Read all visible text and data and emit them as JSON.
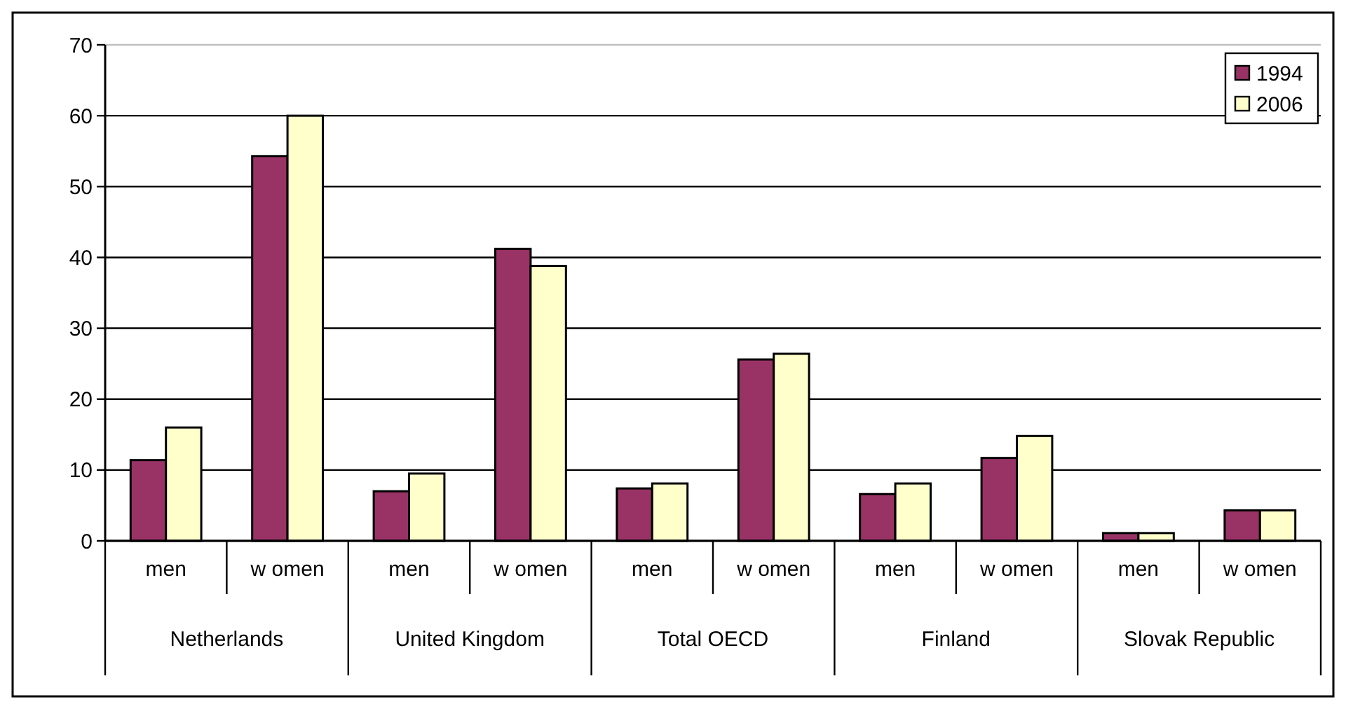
{
  "chart_data": {
    "type": "bar",
    "categories": [
      "men",
      "w omen",
      "men",
      "w omen",
      "men",
      "w omen",
      "men",
      "w omen",
      "men",
      "w omen"
    ],
    "series": [
      {
        "name": "1994",
        "color": "#993366",
        "values": [
          11.4,
          54.3,
          7,
          41.2,
          7.4,
          25.6,
          6.6,
          11.7,
          1.1,
          4.3
        ]
      },
      {
        "name": "2006",
        "color": "#ffffcc",
        "values": [
          16,
          60,
          9.5,
          38.8,
          8.1,
          26.4,
          8.1,
          14.8,
          1.1,
          4.3
        ]
      }
    ],
    "annotations": [
      "Netherlands",
      "United Kingdom",
      "Total OECD",
      "Finland",
      "Slovak Republic"
    ],
    "ylim": [
      0,
      70
    ],
    "yticks": [
      0,
      10,
      20,
      30,
      40,
      50,
      60,
      70
    ],
    "grid": "y",
    "legend": "top right"
  }
}
